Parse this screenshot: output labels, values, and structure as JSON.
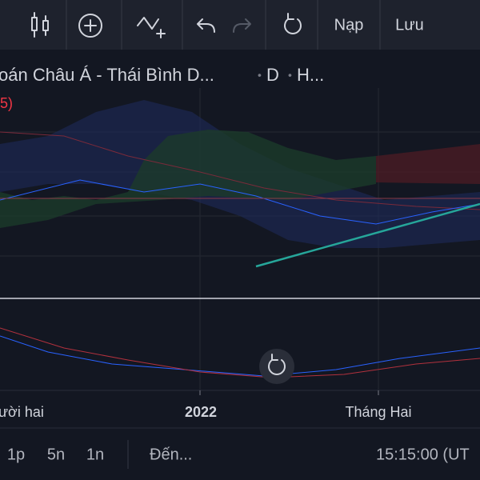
{
  "toolbar": {
    "load": "Nạp",
    "save": "Lưu"
  },
  "legend": {
    "symbol": "oán Châu Á - Thái Bình D...",
    "interval": "D",
    "exchange": "H...",
    "indicator": "5)"
  },
  "time_axis": [
    "ười hai",
    "2022",
    "Tháng Hai"
  ],
  "bottom_bar": {
    "ranges": [
      "1p",
      "5n",
      "1n"
    ],
    "goto": "Đến...",
    "clock": "15:15:00 (UT"
  }
}
